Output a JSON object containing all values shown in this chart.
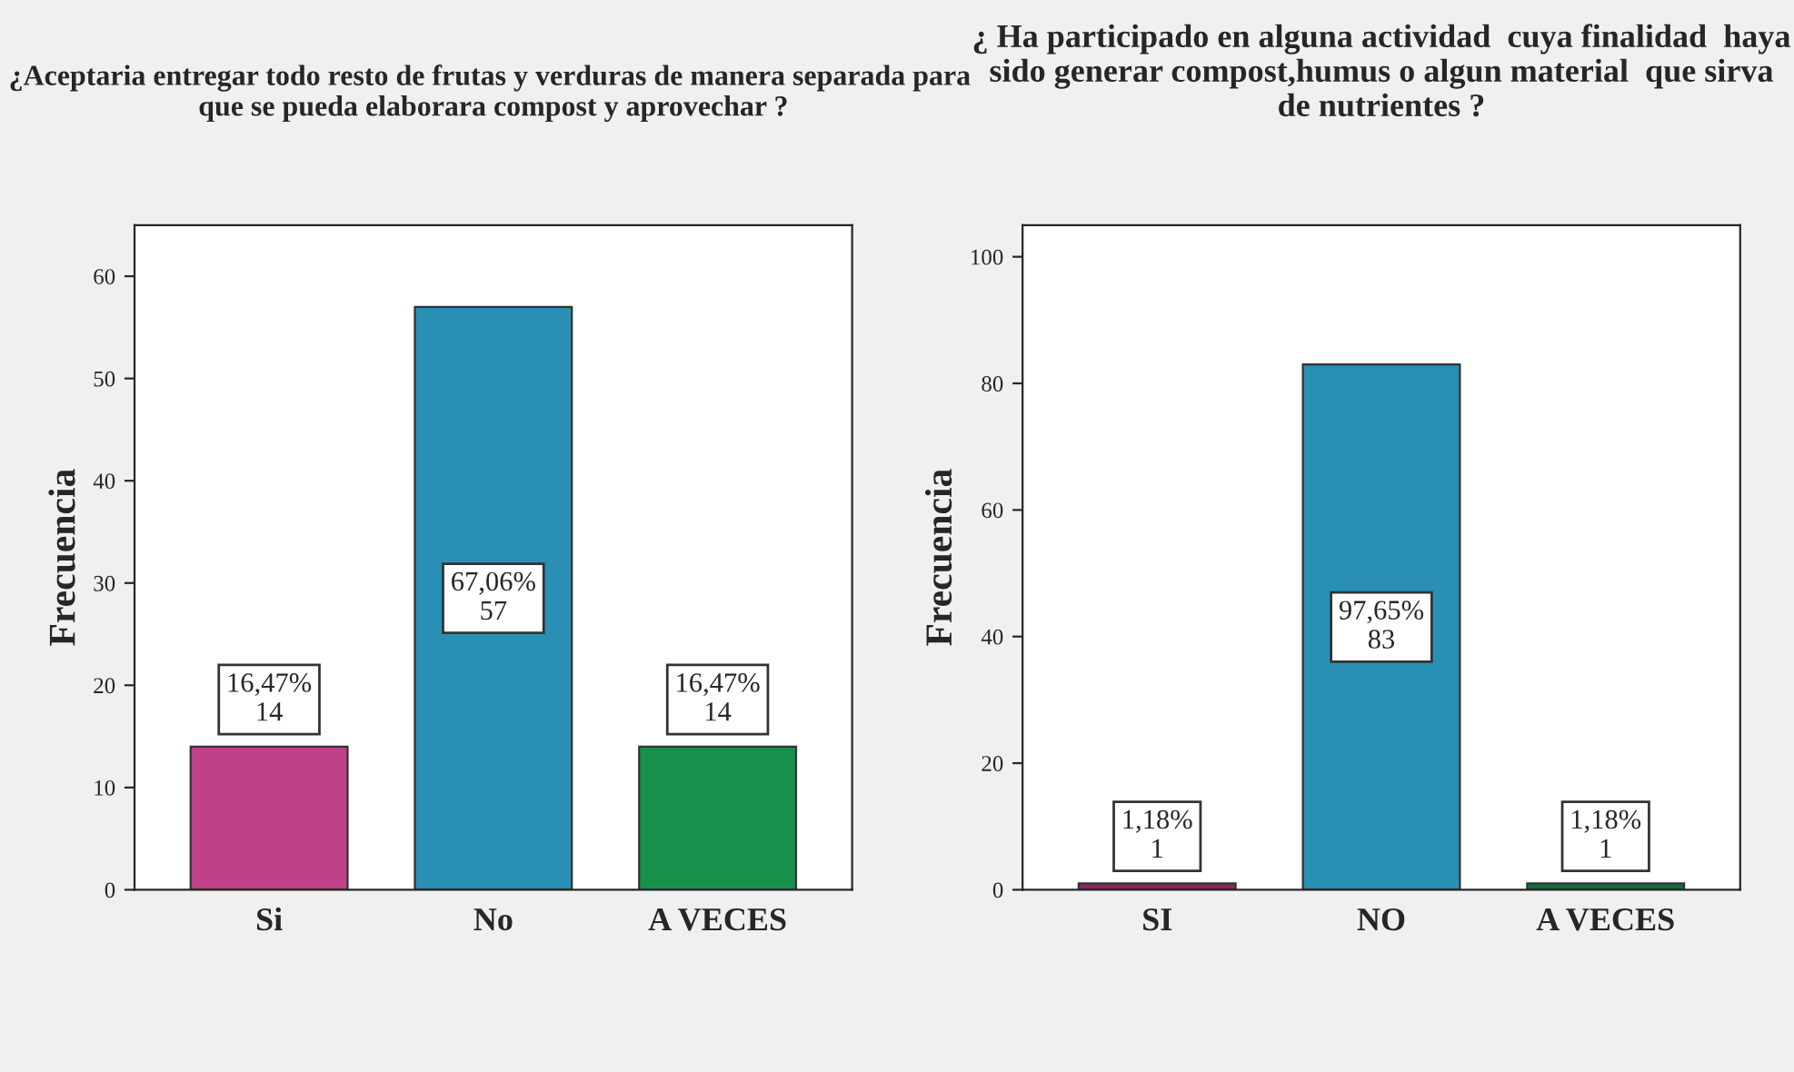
{
  "chart_data": [
    {
      "type": "bar",
      "title": "¿Aceptaria entregar todo resto de frutas y verduras de manera separada para  que se pueda elaborara compost y aprovechar ?",
      "ylabel": "Frecuencia",
      "categories": [
        "Si",
        "No",
        "A VECES"
      ],
      "values": [
        14,
        57,
        14
      ],
      "colors": [
        "#c0408a",
        "#2a8fb5",
        "#17904a"
      ],
      "value_labels": [
        "16,47%\n14",
        "67,06%\n57",
        "16,47%\n14"
      ],
      "ylim": [
        0,
        65
      ],
      "yticks": [
        0,
        10,
        20,
        30,
        40,
        50,
        60
      ],
      "grid": false,
      "legend": false
    },
    {
      "type": "bar",
      "title": "¿ Ha participado en alguna actividad  cuya finalidad  haya sido generar compost,humus o algun material  que sirva de nutrientes ?",
      "ylabel": "Frecuencia",
      "categories": [
        "SI",
        "NO",
        "A VECES"
      ],
      "values": [
        1,
        83,
        1
      ],
      "colors": [
        "#8a2560",
        "#2a8fb5",
        "#0f6e35"
      ],
      "value_labels": [
        "1,18%\n1",
        "97,65%\n83",
        "1,18%\n1"
      ],
      "ylim": [
        0,
        105
      ],
      "yticks": [
        0,
        20,
        40,
        60,
        80,
        100
      ],
      "grid": false,
      "legend": false
    }
  ]
}
